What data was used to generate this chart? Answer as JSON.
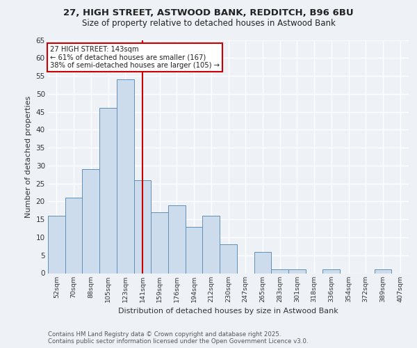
{
  "title1": "27, HIGH STREET, ASTWOOD BANK, REDDITCH, B96 6BU",
  "title2": "Size of property relative to detached houses in Astwood Bank",
  "xlabel": "Distribution of detached houses by size in Astwood Bank",
  "ylabel": "Number of detached properties",
  "categories": [
    "52sqm",
    "70sqm",
    "88sqm",
    "105sqm",
    "123sqm",
    "141sqm",
    "159sqm",
    "176sqm",
    "194sqm",
    "212sqm",
    "230sqm",
    "247sqm",
    "265sqm",
    "283sqm",
    "301sqm",
    "318sqm",
    "336sqm",
    "354sqm",
    "372sqm",
    "389sqm",
    "407sqm"
  ],
  "values": [
    16,
    21,
    29,
    46,
    54,
    26,
    17,
    19,
    13,
    16,
    8,
    0,
    6,
    1,
    1,
    0,
    1,
    0,
    0,
    1,
    0
  ],
  "bar_color": "#ccdcec",
  "bar_edge_color": "#6090b8",
  "vline_index": 5,
  "annotation_text_line1": "27 HIGH STREET: 143sqm",
  "annotation_text_line2": "← 61% of detached houses are smaller (167)",
  "annotation_text_line3": "38% of semi-detached houses are larger (105) →",
  "ylim": [
    0,
    65
  ],
  "yticks": [
    0,
    5,
    10,
    15,
    20,
    25,
    30,
    35,
    40,
    45,
    50,
    55,
    60,
    65
  ],
  "background_color": "#eef2f7",
  "grid_color": "#ffffff",
  "footer": "Contains HM Land Registry data © Crown copyright and database right 2025.\nContains public sector information licensed under the Open Government Licence v3.0.",
  "annotation_box_color": "#ffffff",
  "annotation_border_color": "#cc0000",
  "vline_color": "#cc0000",
  "title1_fontsize": 9.5,
  "title2_fontsize": 8.5
}
